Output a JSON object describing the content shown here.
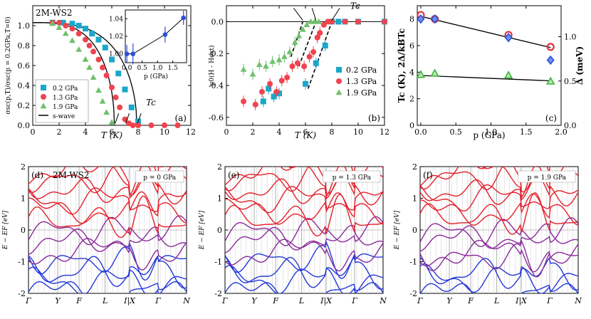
{
  "chart_data": [
    {
      "id": "a",
      "type": "scatter",
      "panel_label": "(a)",
      "title": "2M-WS2",
      "xlabel": "T (K)",
      "ylabel": "σsc(p,T)/σsc(p = 0.2GPa,T=0)",
      "xlim": [
        0,
        12
      ],
      "ylim": [
        0,
        1.2
      ],
      "xticks": [
        0,
        2,
        4,
        6,
        8,
        10,
        12
      ],
      "yticks": [
        0.0,
        0.2,
        0.4,
        0.6,
        0.8,
        1.0
      ],
      "annotation": "Tc",
      "legend_position": "bottom-left",
      "series": [
        {
          "name": "0.2 GPa",
          "marker": "square",
          "color": "#1aa7c9",
          "x": [
            1.5,
            2.3,
            3.0,
            3.5,
            4.0,
            4.5,
            5.0,
            5.5,
            6.0,
            6.5,
            7.0,
            7.5,
            8.0
          ],
          "y": [
            1.03,
            1.03,
            1.02,
            1.0,
            0.97,
            0.92,
            0.86,
            0.78,
            0.66,
            0.52,
            0.36,
            0.18,
            0.04
          ]
        },
        {
          "name": "1.3 GPa",
          "marker": "circle",
          "color": "#f0434f",
          "x": [
            1.5,
            2.0,
            2.5,
            3.0,
            3.5,
            4.0,
            4.3,
            4.6,
            5.0,
            5.3,
            5.6,
            6.0,
            6.3,
            6.6,
            7.0,
            7.3,
            7.6,
            8.0,
            9.0,
            10.0,
            11.0
          ],
          "y": [
            1.03,
            1.03,
            1.0,
            0.97,
            0.92,
            0.86,
            0.8,
            0.74,
            0.66,
            0.58,
            0.5,
            0.38,
            0.28,
            0.18,
            0.06,
            0.02,
            0.0,
            0.0,
            0.0,
            0.0,
            0.0
          ]
        },
        {
          "name": "1.9 GPa",
          "marker": "triangle",
          "color": "#6fc06b",
          "x": [
            1.5,
            2.0,
            2.5,
            3.0,
            3.5,
            4.0,
            4.3,
            4.6,
            5.0,
            5.3,
            5.6,
            6.0
          ],
          "y": [
            1.02,
            0.98,
            0.92,
            0.85,
            0.76,
            0.66,
            0.58,
            0.48,
            0.35,
            0.24,
            0.13,
            0.03
          ]
        },
        {
          "name": "s-wave",
          "marker": "line",
          "color": "#000000"
        }
      ],
      "inset": {
        "xlabel": "p (GPa)",
        "xlim": [
          -0.05,
          1.95
        ],
        "ylim": [
          0.99,
          1.05
        ],
        "xticks": [
          0.0,
          0.5,
          1.0,
          1.5
        ],
        "yticks": [
          1.0,
          1.02,
          1.04
        ],
        "x": [
          0.0,
          0.2,
          1.25,
          1.85
        ],
        "y": [
          1.0,
          1.0,
          1.022,
          1.041
        ],
        "err": [
          0.01,
          0.012,
          0.009,
          0.008
        ]
      }
    },
    {
      "id": "b",
      "type": "scatter",
      "panel_label": "(b)",
      "xlabel": "T (K)",
      "ylabel": "μ0(H - Hext)",
      "xlim": [
        0,
        12
      ],
      "ylim": [
        -0.65,
        0.1
      ],
      "xticks": [
        0,
        2,
        4,
        6,
        8,
        10,
        12
      ],
      "yticks": [
        0.0,
        -0.2,
        -0.4,
        -0.6
      ],
      "annotation": "Tc",
      "legend_position": "bottom-right",
      "series": [
        {
          "name": "0.2 GPa",
          "marker": "square",
          "color": "#1aa7c9",
          "x": [
            2.8,
            3.2,
            3.6,
            4.0,
            6.0,
            6.8,
            7.5,
            8.0,
            8.5,
            9.0,
            10.0,
            12.0
          ],
          "y": [
            -0.5,
            -0.42,
            -0.47,
            -0.45,
            -0.39,
            -0.26,
            -0.15,
            0.0,
            0.0,
            0.0,
            0.0,
            0.0
          ]
        },
        {
          "name": "1.3 GPa",
          "marker": "circle",
          "color": "#f0434f",
          "x": [
            1.3,
            2.2,
            2.7,
            3.3,
            3.8,
            4.2,
            4.6,
            5.0,
            5.4,
            5.9,
            6.3,
            6.6,
            6.9,
            7.1,
            7.4,
            7.7,
            8.0,
            9.0,
            10.0,
            12.0
          ],
          "y": [
            -0.5,
            -0.52,
            -0.44,
            -0.39,
            -0.44,
            -0.37,
            -0.35,
            -0.28,
            -0.26,
            -0.28,
            -0.22,
            -0.19,
            -0.1,
            -0.07,
            -0.02,
            0.0,
            0.0,
            0.0,
            0.0,
            0.0
          ]
        },
        {
          "name": "1.9 GPa",
          "marker": "triangle",
          "color": "#6fc06b",
          "x": [
            1.3,
            2.0,
            2.5,
            3.0,
            3.5,
            4.0,
            4.4,
            4.8,
            5.2,
            5.5,
            5.8,
            6.1,
            6.4,
            6.7,
            7.0
          ],
          "y": [
            -0.3,
            -0.33,
            -0.27,
            -0.28,
            -0.25,
            -0.24,
            -0.22,
            -0.19,
            -0.13,
            -0.09,
            -0.05,
            -0.02,
            0.0,
            0.0,
            0.0
          ]
        }
      ],
      "fits": [
        {
          "color": "#000000",
          "x": [
            4.9,
            5.8
          ],
          "y": [
            -0.22,
            0.0
          ]
        },
        {
          "color": "#000000",
          "x": [
            5.5,
            6.8
          ],
          "y": [
            -0.28,
            0.0
          ]
        },
        {
          "color": "#000000",
          "x": [
            6.2,
            8.0
          ],
          "y": [
            -0.42,
            0.0
          ]
        }
      ]
    },
    {
      "id": "c",
      "type": "scatter",
      "panel_label": "(c)",
      "xlabel": "p (GPa)",
      "ylabel": "Tc (K), 2Δ/kBTc",
      "ylabel_right": "Δ (meV)",
      "xlim": [
        -0.05,
        2.0
      ],
      "ylim": [
        0,
        9
      ],
      "ylim_right": [
        0,
        1.35
      ],
      "xticks": [
        0.0,
        0.5,
        1.0,
        1.5,
        2.0
      ],
      "yticks": [
        0,
        2,
        4,
        6,
        8
      ],
      "yticks_right": [
        0.0,
        0.5,
        1.0
      ],
      "series": [
        {
          "name": "Tc",
          "marker": "circle-open",
          "color": "#e8303a",
          "x": [
            0.0,
            0.2,
            1.25,
            1.85
          ],
          "y": [
            8.3,
            8.0,
            6.8,
            5.9
          ]
        },
        {
          "name": "Δ",
          "marker": "diamond",
          "color": "#2f4fd8",
          "x": [
            0.0,
            0.2,
            1.25,
            1.85
          ],
          "y": [
            8.0,
            8.0,
            6.6,
            4.9
          ]
        },
        {
          "name": "2Δ/kBTc",
          "marker": "triangle-open",
          "color": "#3db43d",
          "x": [
            0.0,
            0.2,
            1.25,
            1.85
          ],
          "y": [
            3.8,
            3.9,
            3.75,
            3.3
          ]
        }
      ],
      "fits": [
        {
          "color": "#000000",
          "x": [
            0.0,
            1.85
          ],
          "y": [
            8.2,
            5.85
          ]
        },
        {
          "color": "#000000",
          "x": [
            0.0,
            1.85
          ],
          "y": [
            3.75,
            3.35
          ]
        }
      ]
    },
    {
      "id": "d",
      "type": "line",
      "panel_label": "(d)",
      "title": "2M-WS2",
      "tag": "p = 0 GPa",
      "ylabel": "E − EF [eV]",
      "ylim": [
        -2,
        2
      ],
      "yticks": [
        -2,
        -1,
        0,
        1,
        2
      ],
      "kpoints": [
        "Γ",
        "Y",
        "F",
        "L",
        "I|X",
        "Γ",
        "N"
      ]
    },
    {
      "id": "e",
      "type": "line",
      "panel_label": "(e)",
      "tag": "p = 1.3 GPa",
      "ylabel": "E − EF [eV]",
      "ylim": [
        -2,
        2
      ],
      "yticks": [
        -2,
        -1,
        0,
        1,
        2
      ],
      "kpoints": [
        "Γ",
        "Y",
        "F",
        "L",
        "I|X",
        "Γ",
        "N"
      ]
    },
    {
      "id": "f",
      "type": "line",
      "panel_label": "(f)",
      "tag": "p = 1.9 GPa",
      "ylabel": "E − EF [eV]",
      "ylim": [
        -2,
        2
      ],
      "yticks": [
        -2,
        -1,
        0,
        1,
        2
      ],
      "kpoints": [
        "Γ",
        "Y",
        "F",
        "L",
        "I|X",
        "Γ",
        "N"
      ]
    }
  ],
  "colors": {
    "band_red": "#e4202c",
    "band_blue": "#2438d8",
    "band_mix": "#8a2a9a"
  }
}
